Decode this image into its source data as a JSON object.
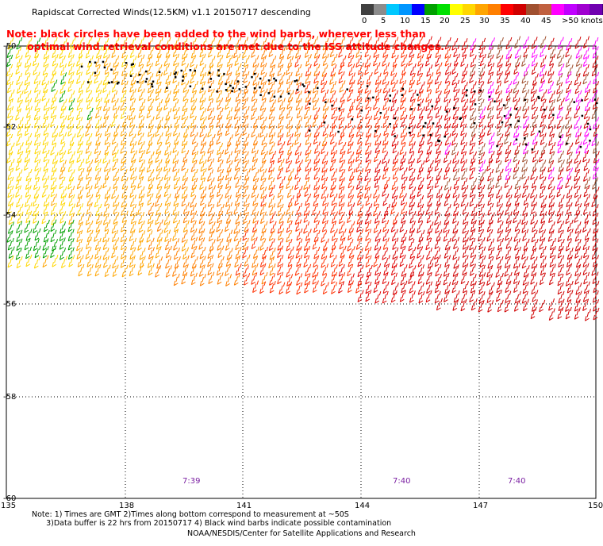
{
  "title": "Rapidscat Corrected Winds(12.5KM) v1.1 20150717 descending",
  "note": {
    "line1": "Note: black circles have been added to the wind barbs, wherever less than",
    "line2": "      optimal wind retrieval conditions are met due to the ISS attitude changes."
  },
  "legend": {
    "colors": [
      "#404040",
      "#8c8c8c",
      "#00c8ff",
      "#0096ff",
      "#0000ff",
      "#00a000",
      "#00e000",
      "#ffff00",
      "#ffd700",
      "#ffa500",
      "#ff7f00",
      "#ff0000",
      "#d00000",
      "#a05030",
      "#c06040",
      "#ff00ff",
      "#c000ff",
      "#a000d0",
      "#7000b0",
      "#400080"
    ],
    "labels": [
      "0",
      "5",
      "10",
      "15",
      "20",
      "25",
      "30",
      "35",
      "40",
      "45",
      ">50 knots"
    ]
  },
  "map": {
    "lat_labels": [
      "-50",
      "-52",
      "-54",
      "-56",
      "-58",
      "-60"
    ],
    "lon_labels": [
      "135",
      "138",
      "141",
      "144",
      "147",
      "150"
    ],
    "pass_times": [
      "7:39",
      "7:40",
      "7:40"
    ]
  },
  "footnote": {
    "line1": "Note: 1) Times are GMT 2)Times along bottom correspond to measurement at ~50S",
    "line2": "      3)Data buffer is 22 hrs from 20150717 4) Black wind barbs indicate possible contamination"
  },
  "credit": "NOAA/NESDIS/Center for Satellite Applications and Research"
}
